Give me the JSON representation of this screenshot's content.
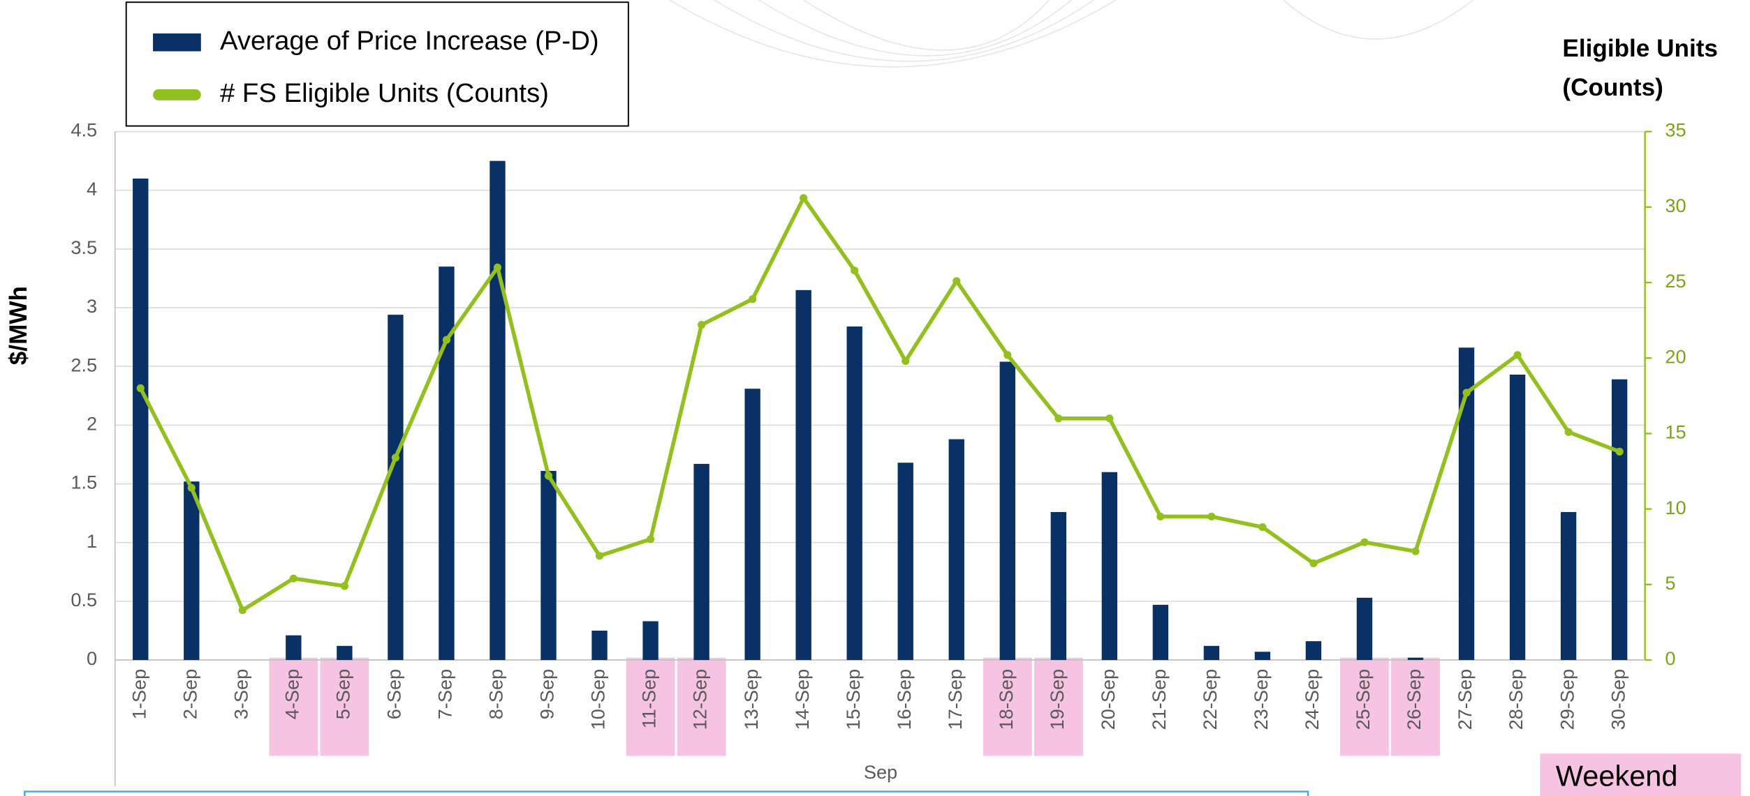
{
  "chart_data": {
    "type": "bar-line",
    "y_label": "$/MWh",
    "y2_label": [
      "Eligible Units",
      "(Counts)"
    ],
    "x_label": "Sep",
    "categories": [
      "1-Sep",
      "2-Sep",
      "3-Sep",
      "4-Sep",
      "5-Sep",
      "6-Sep",
      "7-Sep",
      "8-Sep",
      "9-Sep",
      "10-Sep",
      "11-Sep",
      "12-Sep",
      "13-Sep",
      "14-Sep",
      "15-Sep",
      "16-Sep",
      "17-Sep",
      "18-Sep",
      "19-Sep",
      "20-Sep",
      "21-Sep",
      "22-Sep",
      "23-Sep",
      "24-Sep",
      "25-Sep",
      "26-Sep",
      "27-Sep",
      "28-Sep",
      "29-Sep",
      "30-Sep"
    ],
    "series": [
      {
        "name": "Average of Price Increase (P-D)",
        "type": "bar",
        "axis": "y",
        "color": "#0a3166",
        "values": [
          4.1,
          1.52,
          0,
          0.21,
          0.12,
          2.94,
          3.35,
          4.25,
          1.61,
          0.25,
          0.33,
          1.67,
          2.31,
          3.15,
          2.84,
          1.68,
          1.88,
          2.54,
          1.26,
          1.6,
          0.47,
          0.12,
          0.07,
          0.16,
          0.53,
          0.02,
          2.66,
          2.43,
          1.26,
          2.39
        ]
      },
      {
        "name": "# FS Eligible Units (Counts)",
        "type": "line",
        "axis": "y2",
        "color": "#93c01f",
        "values": [
          18,
          11.4,
          3.3,
          5.4,
          4.9,
          13.4,
          21.2,
          26,
          12.2,
          6.9,
          8,
          22.2,
          23.9,
          30.6,
          25.8,
          19.8,
          25.1,
          20.2,
          16,
          16,
          9.5,
          9.5,
          8.8,
          6.4,
          7.8,
          7.2,
          17.7,
          20.2,
          15.1,
          13.8
        ]
      }
    ],
    "ylim": [
      0,
      4.5
    ],
    "yticks": [
      0,
      0.5,
      1,
      1.5,
      2,
      2.5,
      3,
      3.5,
      4,
      4.5
    ],
    "y2lim": [
      0,
      35
    ],
    "y2ticks": [
      0,
      5,
      10,
      15,
      20,
      25,
      30,
      35
    ],
    "grid": true,
    "legend": "top-left",
    "highlight_label": "Weekend",
    "highlight_color": "#f7c3e3",
    "highlight_indices": [
      3,
      4,
      10,
      11,
      17,
      18,
      24,
      25
    ]
  }
}
